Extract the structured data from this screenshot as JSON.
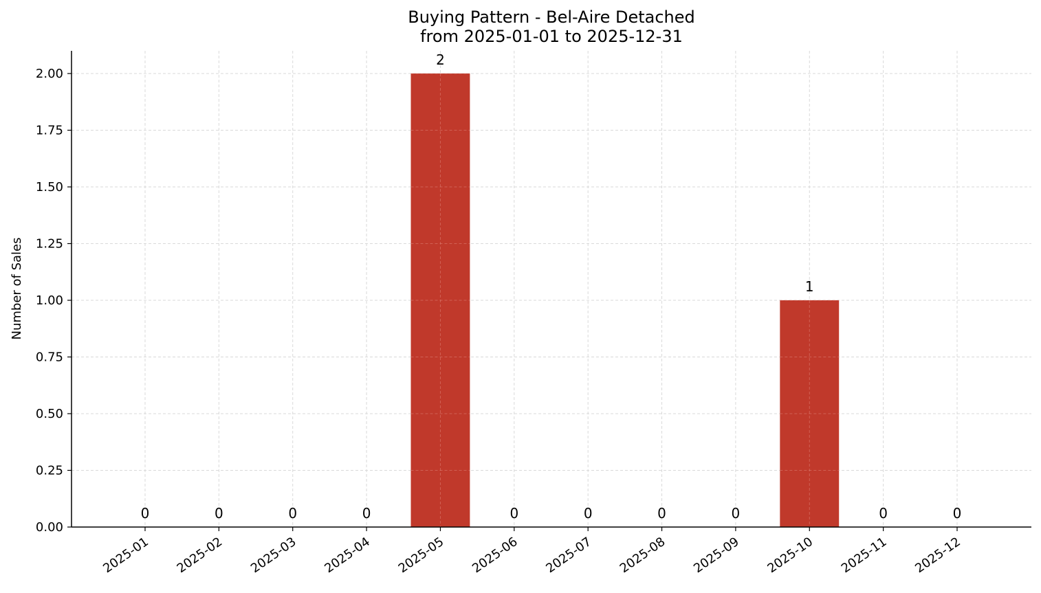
{
  "chart_data": {
    "type": "bar",
    "title": "Buying Pattern - Bel-Aire Detached",
    "subtitle": "from 2025-01-01 to 2025-12-31",
    "xlabel": "",
    "ylabel": "Number of Sales",
    "categories": [
      "2025-01",
      "2025-02",
      "2025-03",
      "2025-04",
      "2025-05",
      "2025-06",
      "2025-07",
      "2025-08",
      "2025-09",
      "2025-10",
      "2025-11",
      "2025-12"
    ],
    "values": [
      0,
      0,
      0,
      0,
      2,
      0,
      0,
      0,
      0,
      1,
      0,
      0
    ],
    "data_labels": [
      "0",
      "0",
      "0",
      "0",
      "2",
      "0",
      "0",
      "0",
      "0",
      "1",
      "0",
      "0"
    ],
    "ylim": [
      0,
      2.1
    ],
    "yticks": [
      0,
      0.25,
      0.5,
      0.75,
      1.0,
      1.25,
      1.5,
      1.75,
      2.0
    ],
    "ytick_labels": [
      "0.00",
      "0.25",
      "0.50",
      "0.75",
      "1.00",
      "1.25",
      "1.50",
      "1.75",
      "2.00"
    ],
    "grid": true,
    "legend": "none",
    "bar_color": "#c0392b",
    "grid_color": "#d9d9d9",
    "axis_color": "#000000"
  }
}
